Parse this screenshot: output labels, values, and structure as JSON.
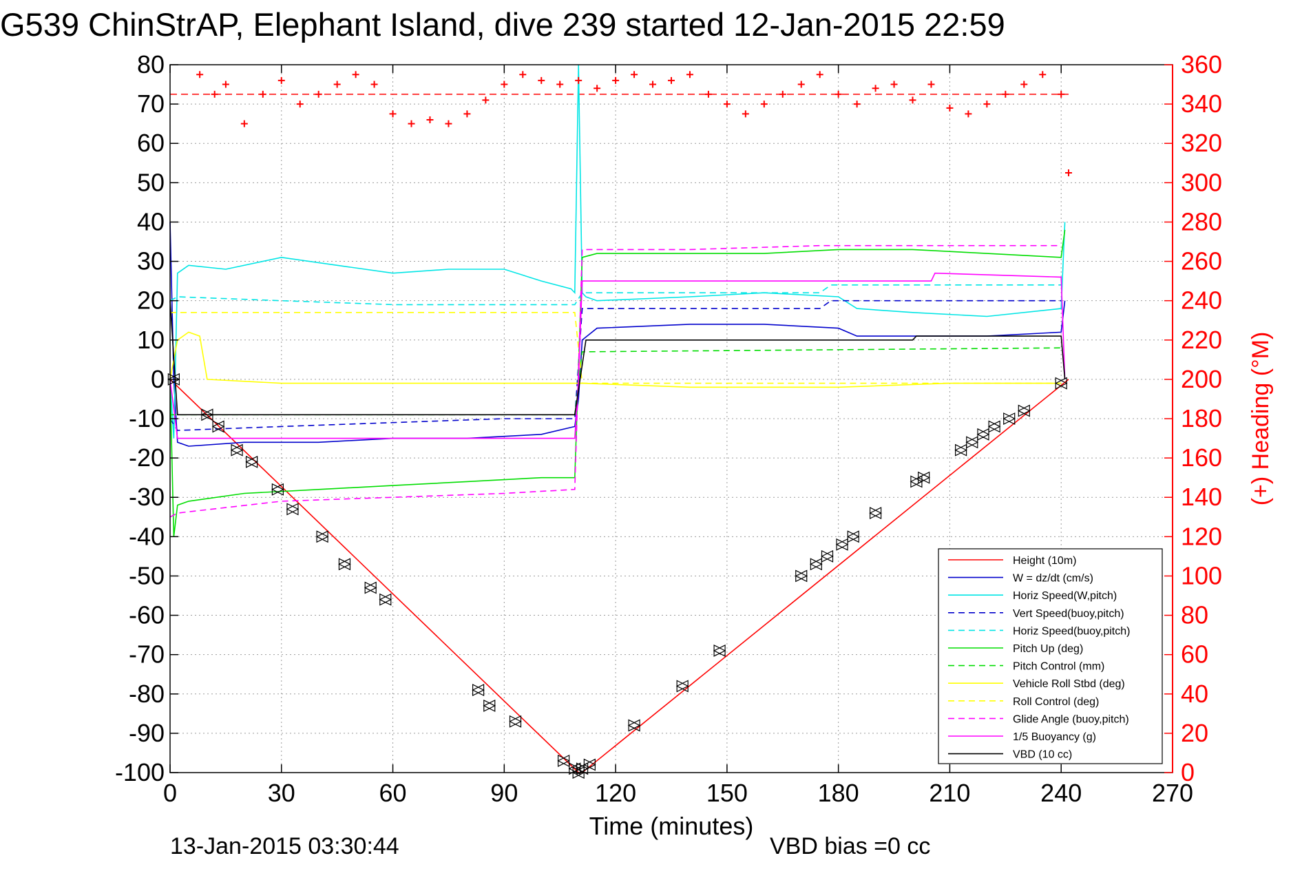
{
  "chart_data": {
    "type": "line",
    "title": "G539 ChinStrAP, Elephant Island, dive 239 started 12-Jan-2015 22:59",
    "xlabel": "Time (minutes)",
    "ylabel_right": "(+) Heading (°M)",
    "xlim": [
      0,
      270
    ],
    "ylim": [
      -100,
      80
    ],
    "ylim_right": [
      0,
      360
    ],
    "x_ticks": [
      0,
      30,
      60,
      90,
      120,
      150,
      180,
      210,
      240,
      270
    ],
    "y_ticks": [
      80,
      70,
      60,
      50,
      40,
      30,
      20,
      10,
      0,
      -10,
      -20,
      -30,
      -40,
      -50,
      -60,
      -70,
      -80,
      -90,
      -100
    ],
    "y_ticks_right": [
      360,
      340,
      320,
      300,
      280,
      260,
      240,
      220,
      200,
      180,
      160,
      140,
      120,
      100,
      80,
      60,
      40,
      20,
      0
    ],
    "grid": true,
    "legend_position": "bottom-right",
    "footer_left": "13-Jan-2015 03:30:44",
    "footer_right": "VBD bias =0 cc",
    "colors": {
      "red": "#ff0000",
      "blue": "#0000cc",
      "cyan": "#00e5e5",
      "green": "#00dd00",
      "yellow": "#ffff00",
      "magenta": "#ff00ff",
      "black": "#000000"
    },
    "series": [
      {
        "name": "Height (10m)",
        "color": "#ff0000",
        "dash": false,
        "x": [
          0,
          110,
          111,
          242
        ],
        "y": [
          0,
          -100,
          -100,
          0
        ]
      },
      {
        "name": "W = dz/dt (cm/s)",
        "color": "#0000cc",
        "dash": false,
        "x": [
          0,
          1,
          2,
          5,
          20,
          40,
          60,
          80,
          100,
          109,
          110,
          111,
          115,
          140,
          160,
          180,
          185,
          200,
          220,
          240,
          241
        ],
        "y": [
          40,
          0,
          -16,
          -17,
          -16,
          -16,
          -15,
          -15,
          -14,
          -12,
          -5,
          10,
          13,
          14,
          14,
          13,
          11,
          11,
          11,
          12,
          20
        ]
      },
      {
        "name": "Horiz Speed(W,pitch)",
        "color": "#00e5e5",
        "dash": false,
        "x": [
          0,
          1,
          2,
          5,
          15,
          30,
          45,
          60,
          75,
          90,
          100,
          108,
          109,
          110,
          111,
          112,
          115,
          140,
          160,
          180,
          185,
          200,
          220,
          240,
          241
        ],
        "y": [
          0,
          -15,
          27,
          29,
          28,
          31,
          29,
          27,
          28,
          28,
          25,
          23,
          22,
          80,
          22,
          21,
          20,
          21,
          22,
          21,
          18,
          17,
          16,
          18,
          40
        ]
      },
      {
        "name": "Vert Speed(buoy,pitch)",
        "color": "#0000cc",
        "dash": true,
        "x": [
          0,
          2,
          30,
          60,
          90,
          109,
          111,
          140,
          175,
          178,
          240
        ],
        "y": [
          -10,
          -13,
          -12,
          -11,
          -10,
          -10,
          18,
          18,
          18,
          20,
          20
        ]
      },
      {
        "name": "Horiz Speed(buoy,pitch)",
        "color": "#00e5e5",
        "dash": true,
        "x": [
          0,
          2,
          30,
          60,
          90,
          109,
          111,
          140,
          175,
          178,
          240
        ],
        "y": [
          20,
          21,
          20,
          19,
          19,
          19,
          22,
          22,
          22,
          24,
          24
        ]
      },
      {
        "name": "Pitch Up (deg)",
        "color": "#00dd00",
        "dash": false,
        "x": [
          0,
          1,
          2,
          5,
          20,
          40,
          60,
          80,
          100,
          109,
          111,
          115,
          140,
          160,
          180,
          200,
          220,
          240,
          241
        ],
        "y": [
          0,
          -40,
          -32,
          -31,
          -29,
          -28,
          -27,
          -26,
          -25,
          -25,
          31,
          32,
          32,
          32,
          33,
          33,
          32,
          31,
          38
        ]
      },
      {
        "name": "Pitch Control (mm)",
        "color": "#00dd00",
        "dash": true,
        "x": [
          0,
          2,
          109,
          111,
          240
        ],
        "y": [
          -9,
          -9,
          -9,
          7,
          8
        ]
      },
      {
        "name": "Vehicle Roll Stbd (deg)",
        "color": "#ffff00",
        "dash": false,
        "x": [
          0,
          2,
          5,
          8,
          10,
          30,
          60,
          90,
          109,
          111,
          140,
          180,
          210,
          240
        ],
        "y": [
          0,
          10,
          12,
          11,
          0,
          -1,
          -1,
          -1,
          -1,
          -1,
          -2,
          -2,
          -1,
          -1
        ]
      },
      {
        "name": "Roll Control (deg)",
        "color": "#ffff00",
        "dash": true,
        "x": [
          0,
          2,
          109,
          111,
          240
        ],
        "y": [
          17,
          17,
          17,
          -1,
          -1
        ]
      },
      {
        "name": "Glide Angle (buoy,pitch)",
        "color": "#ff00ff",
        "dash": true,
        "x": [
          0,
          2,
          30,
          60,
          90,
          109,
          111,
          140,
          175,
          210,
          240
        ],
        "y": [
          -35,
          -34,
          -31,
          -30,
          -29,
          -28,
          33,
          33,
          34,
          34,
          34
        ]
      },
      {
        "name": "1/5 Buoyancy (g)",
        "color": "#ff00ff",
        "dash": false,
        "x": [
          0,
          2,
          109,
          110,
          111,
          205,
          206,
          240,
          241
        ],
        "y": [
          0,
          -15,
          -15,
          0,
          25,
          25,
          27,
          26,
          0
        ]
      },
      {
        "name": "VBD (10 cc)",
        "color": "#000000",
        "dash": false,
        "x": [
          0,
          2,
          109,
          112,
          200,
          201,
          240,
          241
        ],
        "y": [
          20,
          -9,
          -9,
          10,
          10,
          11,
          11,
          0
        ]
      }
    ],
    "heading_points": {
      "name": "(+) Heading",
      "color": "#ff0000",
      "x": [
        8,
        12,
        15,
        20,
        25,
        30,
        35,
        40,
        45,
        50,
        55,
        60,
        65,
        70,
        75,
        80,
        85,
        90,
        95,
        100,
        105,
        110,
        115,
        120,
        125,
        130,
        135,
        140,
        145,
        150,
        155,
        160,
        165,
        170,
        175,
        180,
        185,
        190,
        195,
        200,
        205,
        210,
        215,
        220,
        225,
        230,
        235,
        240,
        242
      ],
      "y": [
        355,
        345,
        350,
        330,
        345,
        352,
        340,
        345,
        350,
        355,
        350,
        335,
        330,
        332,
        330,
        335,
        342,
        350,
        355,
        352,
        350,
        352,
        348,
        352,
        355,
        350,
        352,
        355,
        345,
        340,
        335,
        340,
        345,
        350,
        355,
        345,
        340,
        348,
        350,
        342,
        350,
        338,
        335,
        340,
        345,
        350,
        355,
        345,
        305
      ]
    },
    "heading_reference": {
      "color": "#ff0000",
      "y": 345
    },
    "markers": {
      "color": "#000000",
      "x": [
        1,
        10,
        13,
        18,
        22,
        29,
        33,
        41,
        47,
        54,
        58,
        83,
        86,
        93,
        106,
        109,
        110,
        111,
        113,
        125,
        138,
        148,
        170,
        174,
        177,
        181,
        184,
        190,
        201,
        203,
        213,
        216,
        219,
        222,
        226,
        230,
        240
      ],
      "y": [
        0,
        -9,
        -12,
        -18,
        -21,
        -28,
        -33,
        -40,
        -47,
        -53,
        -56,
        -79,
        -83,
        -87,
        -97,
        -99,
        -100,
        -99,
        -98,
        -88,
        -78,
        -69,
        -50,
        -47,
        -45,
        -42,
        -40,
        -34,
        -26,
        -25,
        -18,
        -16,
        -14,
        -12,
        -10,
        -8,
        -1
      ]
    }
  }
}
